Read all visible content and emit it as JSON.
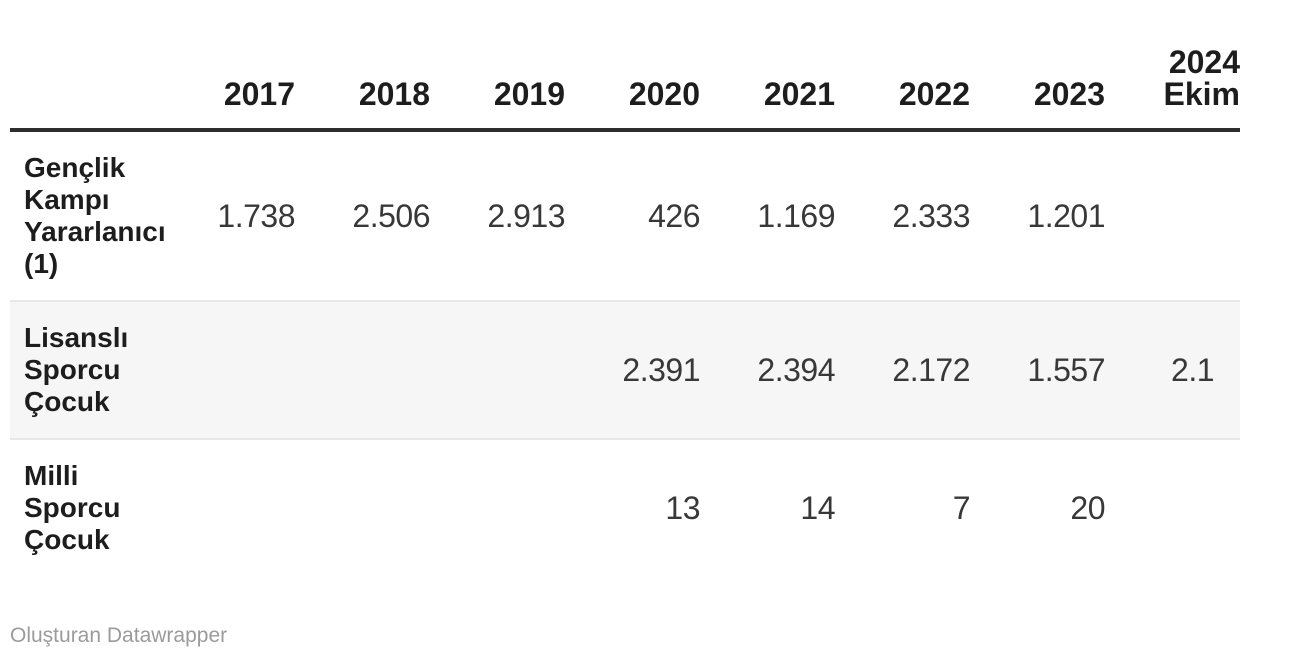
{
  "table": {
    "columns": [
      "2017",
      "2018",
      "2019",
      "2020",
      "2021",
      "2022",
      "2023",
      "2024 Ekim"
    ],
    "rows": [
      {
        "label": "Gençlik Kampı Yararlanıcı (1)",
        "values": [
          "1.738",
          "2.506",
          "2.913",
          "426",
          "1.169",
          "2.333",
          "1.201",
          ""
        ]
      },
      {
        "label": "Lisanslı Sporcu Çocuk",
        "values": [
          "",
          "",
          "",
          "2.391",
          "2.394",
          "2.172",
          "1.557",
          "2.1"
        ]
      },
      {
        "label": "Milli Sporcu Çocuk",
        "values": [
          "",
          "",
          "",
          "13",
          "14",
          "7",
          "20",
          ""
        ]
      }
    ]
  },
  "footer": {
    "prefix": "Oluşturan",
    "brand": "Datawrapper"
  },
  "colors": {
    "text_primary": "#1d1d1d",
    "text_values": "#383838",
    "header_rule": "#2e2e2e",
    "row_separator": "#e7e7e7",
    "stripe_background": "#f6f6f6",
    "attribution_gray": "#9b9b9b",
    "page_background": "#ffffff"
  },
  "chart_data": {
    "type": "table",
    "title": "",
    "categories": [
      "2017",
      "2018",
      "2019",
      "2020",
      "2021",
      "2022",
      "2023",
      "2024 Ekim"
    ],
    "series": [
      {
        "name": "Gençlik Kampı Yararlanıcı (1)",
        "values": [
          1738,
          2506,
          2913,
          426,
          1169,
          2333,
          1201,
          null
        ]
      },
      {
        "name": "Lisanslı Sporcu Çocuk",
        "values": [
          null,
          null,
          null,
          2391,
          2394,
          2172,
          1557,
          "2.1 (clipped)"
        ]
      },
      {
        "name": "Milli Sporcu Çocuk",
        "values": [
          null,
          null,
          null,
          13,
          14,
          7,
          20,
          null
        ]
      }
    ],
    "notes": "Oluşturan Datawrapper"
  }
}
